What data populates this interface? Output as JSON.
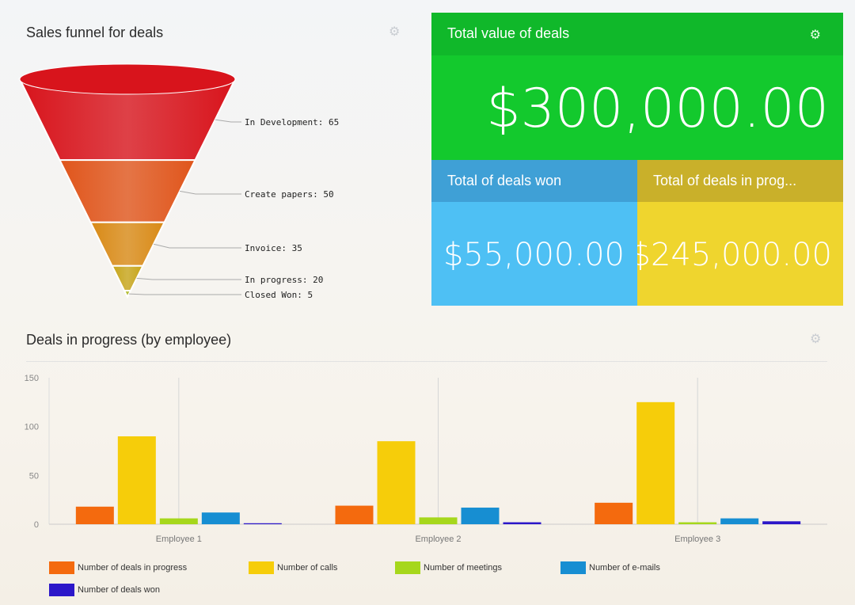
{
  "funnel_widget": {
    "title": "Sales funnel for deals",
    "gear_icon": "gear-icon",
    "stages": [
      {
        "label": "In Development: 65",
        "value": 65,
        "color": "#d8141c"
      },
      {
        "label": "Create papers: 50",
        "value": 50,
        "color": "#e0551b"
      },
      {
        "label": "Invoice: 35",
        "value": 35,
        "color": "#d98a16"
      },
      {
        "label": "In progress: 20",
        "value": 20,
        "color": "#c7a51a"
      },
      {
        "label": "Closed Won: 5",
        "value": 5,
        "color": "#a8b315"
      }
    ]
  },
  "total_value": {
    "title": "Total value of deals",
    "value": "$300,000.00",
    "gear_icon": "gear-icon",
    "head_color": "#10b82a",
    "body_color": "#13c92d"
  },
  "deals_won": {
    "title": "Total of deals won",
    "value": "$55,000.00",
    "head_color": "#3fa0d6",
    "body_color": "#4ec0f4"
  },
  "deals_in_progress": {
    "title": "Total of deals in prog...",
    "value": "$245,000.00",
    "head_color": "#c9b02a",
    "body_color": "#efd52e"
  },
  "chart_widget": {
    "title": "Deals in progress (by employee)",
    "gear_icon": "gear-icon"
  },
  "chart_data": {
    "type": "bar",
    "categories": [
      "Employee 1",
      "Employee 2",
      "Employee 3"
    ],
    "ylim": [
      0,
      150
    ],
    "yticks": [
      0,
      50,
      100,
      150
    ],
    "legend_position": "bottom",
    "grid": false,
    "series": [
      {
        "name": "Number of deals in progress",
        "color": "#f46a0e",
        "values": [
          18,
          19,
          22
        ]
      },
      {
        "name": "Number of calls",
        "color": "#f6cd0a",
        "values": [
          90,
          85,
          125
        ]
      },
      {
        "name": "Number of meetings",
        "color": "#a6d71c",
        "values": [
          6,
          7,
          2
        ]
      },
      {
        "name": "Number of e-mails",
        "color": "#178ed2",
        "values": [
          12,
          17,
          6
        ]
      },
      {
        "name": "Number of deals won",
        "color": "#2c17c9",
        "values": [
          1,
          2,
          3
        ]
      }
    ]
  }
}
